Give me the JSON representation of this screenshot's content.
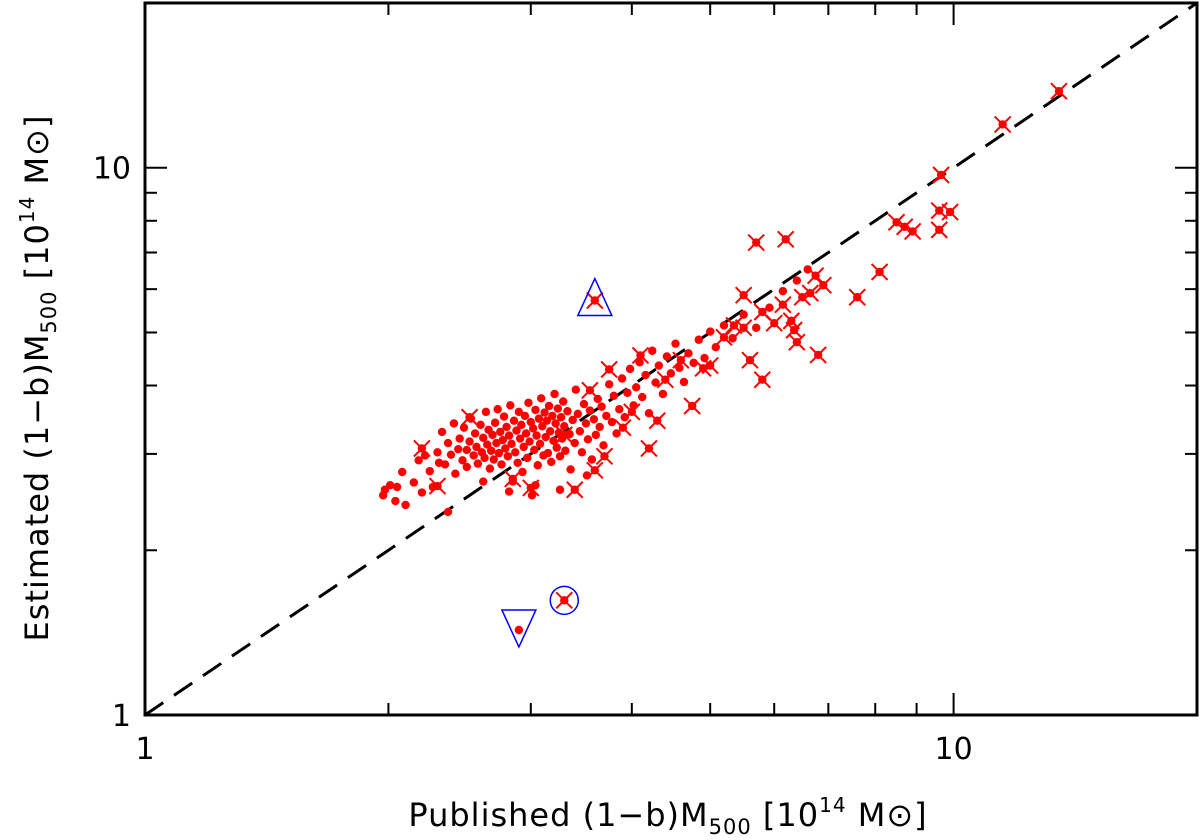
{
  "chart_data": {
    "type": "scatter",
    "title": "",
    "xlabel": {
      "prefix": "Published (1−b)M",
      "sub": "500",
      "mid": " [10",
      "sup": "14",
      "suffix": " M⊙]"
    },
    "ylabel": {
      "prefix": "Estimated (1−b)M",
      "sub": "500",
      "mid": " [10",
      "sup": "14",
      "suffix": " M⊙]"
    },
    "xscale": "log",
    "yscale": "log",
    "xlim": [
      1,
      20
    ],
    "ylim": [
      1,
      20
    ],
    "x_tick_labels": [
      {
        "value": 1,
        "label": "1"
      },
      {
        "value": 10,
        "label": "10"
      }
    ],
    "y_tick_labels": [
      {
        "value": 1,
        "label": "1"
      },
      {
        "value": 10,
        "label": "10"
      }
    ],
    "grid": false,
    "legend": "none",
    "colors": {
      "points": "#ff0000",
      "crosses": "#ff0000",
      "highlight": "#0000ff",
      "reference_line": "#000000"
    },
    "reference_line": {
      "style": "dashed",
      "label": "",
      "relation": "y = x"
    },
    "series": [
      {
        "marker": "filled-circle",
        "points": [
          [
            1.97,
            2.52
          ],
          [
            1.98,
            2.58
          ],
          [
            2.01,
            2.63
          ],
          [
            2.04,
            2.46
          ],
          [
            2.05,
            2.61
          ],
          [
            2.08,
            2.78
          ],
          [
            2.1,
            2.42
          ],
          [
            2.15,
            2.66
          ],
          [
            2.18,
            2.92
          ],
          [
            2.2,
            2.55
          ],
          [
            2.22,
            2.98
          ],
          [
            2.25,
            2.79
          ],
          [
            2.27,
            2.61
          ],
          [
            2.3,
            3.02
          ],
          [
            2.31,
            2.89
          ],
          [
            2.33,
            3.29
          ],
          [
            2.35,
            2.87
          ],
          [
            2.37,
            3.14
          ],
          [
            2.39,
            2.99
          ],
          [
            2.41,
            3.41
          ],
          [
            2.42,
            2.76
          ],
          [
            2.44,
            3.06
          ],
          [
            2.45,
            3.2
          ],
          [
            2.47,
            2.92
          ],
          [
            2.48,
            3.35
          ],
          [
            2.5,
            3.05
          ],
          [
            2.5,
            2.84
          ],
          [
            2.52,
            3.16
          ],
          [
            2.53,
            3.48
          ],
          [
            2.55,
            2.98
          ],
          [
            2.56,
            3.27
          ],
          [
            2.57,
            3.09
          ],
          [
            2.58,
            2.88
          ],
          [
            2.6,
            3.39
          ],
          [
            2.61,
            3.02
          ],
          [
            2.62,
            3.21
          ],
          [
            2.63,
            2.95
          ],
          [
            2.64,
            3.58
          ],
          [
            2.65,
            3.12
          ],
          [
            2.66,
            3.32
          ],
          [
            2.67,
            2.82
          ],
          [
            2.68,
            3.04
          ],
          [
            2.69,
            3.25
          ],
          [
            2.7,
            2.93
          ],
          [
            2.71,
            3.42
          ],
          [
            2.72,
            3.14
          ],
          [
            2.73,
            3.62
          ],
          [
            2.74,
            3.01
          ],
          [
            2.75,
            3.29
          ],
          [
            2.76,
            2.87
          ],
          [
            2.77,
            3.18
          ],
          [
            2.78,
            3.51
          ],
          [
            2.79,
            3.07
          ],
          [
            2.8,
            3.36
          ],
          [
            2.81,
            2.97
          ],
          [
            2.82,
            3.24
          ],
          [
            2.83,
            3.68
          ],
          [
            2.84,
            3.13
          ],
          [
            2.85,
            2.67
          ],
          [
            2.86,
            3.45
          ],
          [
            2.87,
            3.02
          ],
          [
            2.88,
            3.31
          ],
          [
            2.89,
            2.89
          ],
          [
            2.9,
            3.58
          ],
          [
            2.91,
            3.2
          ],
          [
            2.92,
            3.39
          ],
          [
            2.93,
            2.78
          ],
          [
            2.94,
            3.09
          ],
          [
            2.95,
            3.52
          ],
          [
            2.96,
            3.27
          ],
          [
            2.97,
            2.95
          ],
          [
            2.98,
            3.72
          ],
          [
            2.99,
            3.16
          ],
          [
            3.0,
            3.43
          ],
          [
            3.01,
            2.52
          ],
          [
            3.02,
            3.34
          ],
          [
            3.03,
            3.05
          ],
          [
            3.04,
            3.61
          ],
          [
            3.05,
            3.24
          ],
          [
            3.06,
            2.86
          ],
          [
            3.07,
            3.48
          ],
          [
            3.08,
            3.13
          ],
          [
            3.09,
            3.79
          ],
          [
            3.1,
            3.37
          ],
          [
            3.11,
            2.98
          ],
          [
            3.12,
            3.57
          ],
          [
            3.13,
            3.22
          ],
          [
            3.14,
            3.45
          ],
          [
            3.15,
            3.01
          ],
          [
            3.16,
            3.67
          ],
          [
            3.17,
            3.3
          ],
          [
            3.18,
            2.9
          ],
          [
            3.19,
            3.52
          ],
          [
            3.2,
            3.17
          ],
          [
            3.21,
            3.86
          ],
          [
            3.22,
            3.41
          ],
          [
            3.23,
            3.08
          ],
          [
            3.24,
            3.63
          ],
          [
            3.25,
            3.28
          ],
          [
            3.26,
            2.97
          ],
          [
            3.27,
            3.5
          ],
          [
            3.28,
            3.2
          ],
          [
            3.29,
            3.74
          ],
          [
            3.3,
            3.37
          ],
          [
            3.31,
            3.04
          ],
          [
            3.33,
            3.59
          ],
          [
            3.35,
            3.26
          ],
          [
            3.36,
            2.81
          ],
          [
            3.38,
            3.46
          ],
          [
            3.4,
            3.14
          ],
          [
            3.41,
            3.93
          ],
          [
            3.43,
            3.55
          ],
          [
            3.45,
            3.3
          ],
          [
            3.47,
            3.02
          ],
          [
            3.49,
            3.7
          ],
          [
            3.51,
            3.41
          ],
          [
            3.53,
            3.19
          ],
          [
            3.55,
            3.6
          ],
          [
            3.57,
            2.93
          ],
          [
            3.59,
            3.47
          ],
          [
            3.61,
            3.25
          ],
          [
            3.63,
            3.78
          ],
          [
            3.65,
            3.36
          ],
          [
            3.67,
            3.66
          ],
          [
            3.69,
            3.11
          ],
          [
            3.72,
            3.52
          ],
          [
            3.75,
            4.02
          ],
          [
            3.78,
            3.43
          ],
          [
            3.8,
            3.83
          ],
          [
            3.83,
            3.27
          ],
          [
            3.86,
            3.62
          ],
          [
            3.89,
            4.12
          ],
          [
            3.92,
            3.5
          ],
          [
            3.95,
            3.88
          ],
          [
            3.98,
            4.29
          ],
          [
            4.02,
            3.68
          ],
          [
            4.05,
            3.97
          ],
          [
            4.09,
            4.41
          ],
          [
            4.12,
            3.81
          ],
          [
            4.16,
            4.18
          ],
          [
            4.2,
            3.56
          ],
          [
            4.24,
            4.63
          ],
          [
            4.28,
            4.05
          ],
          [
            4.32,
            4.35
          ],
          [
            4.37,
            3.86
          ],
          [
            4.42,
            4.52
          ],
          [
            4.47,
            4.21
          ],
          [
            4.53,
            4.77
          ],
          [
            4.58,
            4.31
          ],
          [
            4.64,
            4.06
          ],
          [
            4.7,
            4.58
          ],
          [
            4.77,
            4.4
          ],
          [
            4.84,
            4.85
          ],
          [
            4.92,
            4.49
          ],
          [
            5.0,
            5.02
          ],
          [
            5.08,
            4.7
          ],
          [
            5.2,
            5.15
          ],
          [
            5.33,
            4.88
          ],
          [
            5.5,
            5.39
          ],
          [
            5.7,
            5.1
          ],
          [
            5.92,
            5.55
          ],
          [
            6.15,
            5.95
          ],
          [
            6.4,
            6.22
          ],
          [
            6.6,
            6.52
          ],
          [
            2.37,
            2.35
          ],
          [
            2.62,
            2.67
          ],
          [
            2.82,
            2.56
          ],
          [
            3.04,
            2.63
          ],
          [
            3.26,
            2.58
          ],
          [
            3.52,
            2.74
          ],
          [
            2.9,
            1.43
          ]
        ]
      },
      {
        "marker": "cross-with-point",
        "points": [
          [
            2.2,
            3.07
          ],
          [
            2.3,
            2.62
          ],
          [
            2.52,
            3.5
          ],
          [
            2.85,
            2.7
          ],
          [
            3.0,
            2.6
          ],
          [
            3.4,
            2.58
          ],
          [
            3.6,
            2.8
          ],
          [
            3.7,
            2.97
          ],
          [
            3.3,
            3.25
          ],
          [
            3.55,
            3.92
          ],
          [
            3.9,
            3.35
          ],
          [
            4.0,
            3.58
          ],
          [
            4.2,
            3.07
          ],
          [
            3.75,
            4.28
          ],
          [
            4.1,
            4.54
          ],
          [
            4.4,
            4.1
          ],
          [
            4.6,
            4.45
          ],
          [
            4.9,
            4.3
          ],
          [
            4.3,
            3.45
          ],
          [
            4.75,
            3.67
          ],
          [
            5.0,
            4.35
          ],
          [
            5.2,
            4.9
          ],
          [
            5.5,
            5.1
          ],
          [
            5.6,
            4.45
          ],
          [
            5.35,
            5.15
          ],
          [
            5.8,
            5.45
          ],
          [
            6.0,
            5.2
          ],
          [
            6.15,
            5.62
          ],
          [
            6.3,
            5.25
          ],
          [
            6.5,
            5.8
          ],
          [
            6.75,
            6.35
          ],
          [
            6.65,
            5.9
          ],
          [
            6.9,
            6.1
          ],
          [
            6.35,
            5.05
          ],
          [
            6.4,
            4.8
          ],
          [
            6.8,
            4.55
          ],
          [
            5.8,
            4.1
          ],
          [
            5.5,
            5.85
          ],
          [
            5.7,
            7.3
          ],
          [
            6.2,
            7.4
          ],
          [
            7.6,
            5.8
          ],
          [
            8.1,
            6.45
          ],
          [
            8.5,
            7.95
          ],
          [
            8.7,
            7.8
          ],
          [
            8.9,
            7.65
          ],
          [
            9.6,
            7.7
          ],
          [
            9.6,
            8.35
          ],
          [
            9.9,
            8.3
          ],
          [
            9.65,
            9.7
          ],
          [
            11.5,
            12.0
          ],
          [
            13.5,
            13.8
          ],
          [
            3.3,
            1.62
          ],
          [
            3.6,
            5.72
          ]
        ]
      }
    ],
    "highlighted": [
      {
        "marker": "triangle-up",
        "x": 3.6,
        "y": 5.72
      },
      {
        "marker": "circle",
        "x": 3.3,
        "y": 1.62
      },
      {
        "marker": "triangle-down",
        "x": 2.9,
        "y": 1.43
      }
    ]
  }
}
